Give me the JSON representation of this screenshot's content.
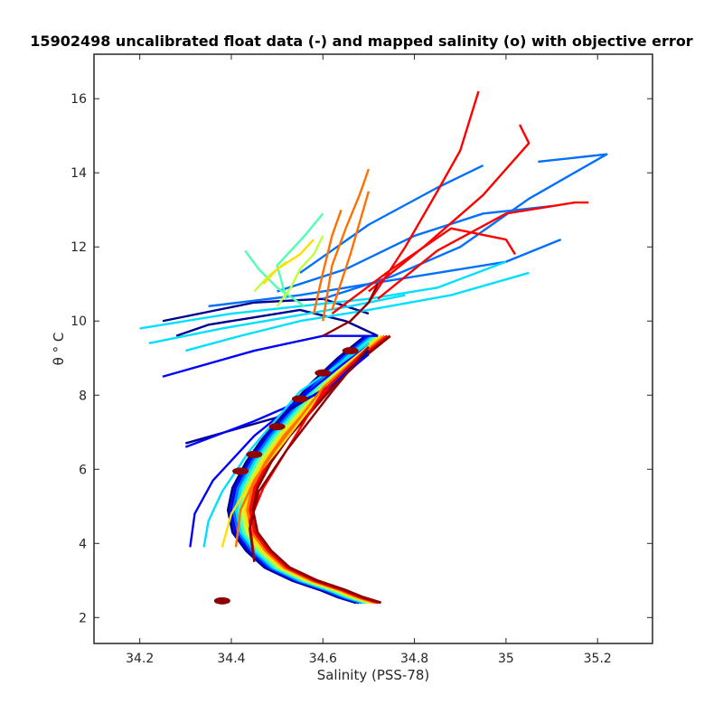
{
  "chart_data": {
    "type": "line",
    "title": "15902498 uncalibrated float data (-) and mapped salinity (o) with objective error",
    "xlabel": "Salinity (PSS-78)",
    "ylabel": "θ ° C",
    "xlim": [
      34.1,
      35.32
    ],
    "ylim": [
      1.3,
      17.2
    ],
    "xticks": [
      34.2,
      34.4,
      34.6,
      34.8,
      35,
      35.2
    ],
    "xtick_labels": [
      "34.2",
      "34.4",
      "34.6",
      "34.8",
      "35",
      "35.2"
    ],
    "yticks": [
      2,
      4,
      6,
      8,
      10,
      12,
      14,
      16
    ],
    "ytick_labels": [
      "2",
      "4",
      "6",
      "8",
      "10",
      "12",
      "14",
      "16"
    ],
    "grid": false,
    "colormap": "jet",
    "colors": [
      "#00008f",
      "#0000ff",
      "#0070ff",
      "#00dfff",
      "#50ffaf",
      "#bfff40",
      "#ffdf00",
      "#ff7000",
      "#ff0000",
      "#8f0000"
    ],
    "series": [
      {
        "color": "#00008f",
        "x": [
          34.25,
          34.45,
          34.6,
          34.7
        ],
        "y": [
          10.0,
          10.5,
          10.6,
          10.2
        ]
      },
      {
        "color": "#00008f",
        "x": [
          34.3,
          34.5,
          34.62,
          34.7
        ],
        "y": [
          6.7,
          7.4,
          8.3,
          9.2
        ]
      },
      {
        "color": "#00008f",
        "x": [
          34.28,
          34.35,
          34.45,
          34.55,
          34.65,
          34.72
        ],
        "y": [
          9.6,
          9.9,
          10.1,
          10.3,
          10.0,
          9.6
        ]
      },
      {
        "color": "#0000ff",
        "x": [
          34.31,
          34.32,
          34.36,
          34.45,
          34.6,
          34.7
        ],
        "y": [
          3.9,
          4.8,
          5.7,
          6.9,
          8.4,
          9.4
        ]
      },
      {
        "color": "#0000ff",
        "x": [
          34.25,
          34.45,
          34.6,
          34.72
        ],
        "y": [
          8.5,
          9.2,
          9.6,
          9.6
        ]
      },
      {
        "color": "#0000ff",
        "x": [
          34.3,
          34.45,
          34.6,
          34.7
        ],
        "y": [
          6.6,
          7.3,
          8.1,
          9.1
        ]
      },
      {
        "color": "#0070ff",
        "x": [
          34.6,
          34.75,
          34.9,
          35.05,
          35.22,
          35.07
        ],
        "y": [
          10.6,
          11.2,
          12.0,
          13.3,
          14.5,
          14.3
        ]
      },
      {
        "color": "#0070ff",
        "x": [
          34.5,
          34.65,
          34.8,
          34.95,
          35.1
        ],
        "y": [
          10.8,
          11.4,
          12.3,
          12.9,
          13.1
        ]
      },
      {
        "color": "#0070ff",
        "x": [
          34.55,
          34.7,
          34.85,
          34.95
        ],
        "y": [
          11.3,
          12.6,
          13.6,
          14.2
        ]
      },
      {
        "color": "#0070ff",
        "x": [
          34.35,
          34.55,
          34.7,
          34.85,
          35.0,
          35.12
        ],
        "y": [
          10.4,
          10.7,
          11.0,
          11.3,
          11.6,
          12.2
        ]
      },
      {
        "color": "#00dfff",
        "x": [
          34.2,
          34.4,
          34.55,
          34.7,
          34.85,
          35.0
        ],
        "y": [
          9.8,
          10.2,
          10.4,
          10.6,
          10.9,
          11.6
        ]
      },
      {
        "color": "#00dfff",
        "x": [
          34.22,
          34.38,
          34.52,
          34.66,
          34.78
        ],
        "y": [
          9.4,
          9.8,
          10.1,
          10.4,
          10.7
        ]
      },
      {
        "color": "#00dfff",
        "x": [
          34.3,
          34.42,
          34.55,
          34.7,
          34.88,
          35.05
        ],
        "y": [
          9.2,
          9.6,
          10.0,
          10.3,
          10.7,
          11.3
        ]
      },
      {
        "color": "#00dfff",
        "x": [
          34.34,
          34.35,
          34.38,
          34.44,
          34.55,
          34.7
        ],
        "y": [
          3.9,
          4.6,
          5.4,
          6.5,
          8.1,
          9.4
        ]
      },
      {
        "color": "#50ffaf",
        "x": [
          34.52,
          34.5,
          34.56,
          34.6
        ],
        "y": [
          10.6,
          11.5,
          12.3,
          12.9
        ]
      },
      {
        "color": "#50ffaf",
        "x": [
          34.43,
          34.46,
          34.5,
          34.56
        ],
        "y": [
          11.9,
          11.4,
          10.9,
          10.4
        ]
      },
      {
        "color": "#bfff40",
        "x": [
          34.5,
          34.53,
          34.55,
          34.58,
          34.6
        ],
        "y": [
          10.4,
          10.9,
          11.4,
          11.8,
          12.3
        ]
      },
      {
        "color": "#bfff40",
        "x": [
          34.45,
          34.48,
          34.52
        ],
        "y": [
          10.8,
          11.2,
          11.6
        ]
      },
      {
        "color": "#ffdf00",
        "x": [
          34.47,
          34.5,
          34.55,
          34.58
        ],
        "y": [
          11.0,
          11.4,
          11.8,
          12.2
        ]
      },
      {
        "color": "#ffdf00",
        "x": [
          34.38,
          34.4,
          34.44,
          34.5,
          34.6,
          34.7
        ],
        "y": [
          3.9,
          4.8,
          5.6,
          6.5,
          8.1,
          9.3
        ]
      },
      {
        "color": "#ff7000",
        "x": [
          34.6,
          34.62,
          34.65,
          34.68,
          34.7
        ],
        "y": [
          10.0,
          11.5,
          12.5,
          13.4,
          14.1
        ]
      },
      {
        "color": "#ff7000",
        "x": [
          34.58,
          34.6,
          34.62,
          34.64
        ],
        "y": [
          10.2,
          11.3,
          12.3,
          13.0
        ]
      },
      {
        "color": "#ff7000",
        "x": [
          34.62,
          34.66,
          34.7
        ],
        "y": [
          10.3,
          11.8,
          13.5
        ]
      },
      {
        "color": "#ff7000",
        "x": [
          34.41,
          34.42,
          34.45,
          34.5,
          34.6,
          34.7
        ],
        "y": [
          3.9,
          4.9,
          5.7,
          6.6,
          8.2,
          9.3
        ]
      },
      {
        "color": "#ff0000",
        "x": [
          34.7,
          34.78,
          34.85,
          34.9,
          34.94
        ],
        "y": [
          10.5,
          12.0,
          13.5,
          14.6,
          16.2
        ]
      },
      {
        "color": "#ff0000",
        "x": [
          34.7,
          34.82,
          34.95,
          35.05,
          35.03
        ],
        "y": [
          10.8,
          12.0,
          13.4,
          14.8,
          15.3
        ]
      },
      {
        "color": "#ff0000",
        "x": [
          34.72,
          34.85,
          35.0,
          35.15,
          35.18
        ],
        "y": [
          10.6,
          11.9,
          12.9,
          13.2,
          13.2
        ]
      },
      {
        "color": "#ff0000",
        "x": [
          34.62,
          34.75,
          34.88,
          35.0,
          35.02
        ],
        "y": [
          10.2,
          11.4,
          12.5,
          12.2,
          11.8
        ]
      },
      {
        "color": "#ff0000",
        "x": [
          34.45,
          34.44,
          34.47,
          34.52,
          34.6,
          34.7
        ],
        "y": [
          3.6,
          4.6,
          5.5,
          6.5,
          8.1,
          9.3
        ]
      },
      {
        "color": "#8f0000",
        "x": [
          34.6,
          34.66,
          34.7,
          34.72
        ],
        "y": [
          9.6,
          10.0,
          10.5,
          11.0
        ]
      },
      {
        "color": "#8f0000",
        "x": [
          34.45,
          34.44,
          34.46,
          34.52,
          34.62,
          34.7
        ],
        "y": [
          3.5,
          4.4,
          5.4,
          6.5,
          8.1,
          9.3
        ]
      }
    ],
    "curve": {
      "x": [
        34.7,
        34.66,
        34.62,
        34.56,
        34.5,
        34.46,
        34.43,
        34.42,
        34.43,
        34.46,
        34.5,
        34.55,
        34.6,
        34.66,
        34.72
      ],
      "y": [
        2.4,
        2.55,
        2.75,
        3.0,
        3.35,
        3.8,
        4.3,
        4.9,
        5.5,
        6.2,
        6.9,
        7.6,
        8.3,
        9.0,
        9.6
      ]
    },
    "mapped_salinity": {
      "color": "#8f0000",
      "x": [
        34.38,
        34.42,
        34.45,
        34.5,
        34.55,
        34.6,
        34.66
      ],
      "y": [
        2.45,
        5.95,
        6.4,
        7.15,
        7.9,
        8.6,
        9.2
      ]
    }
  }
}
